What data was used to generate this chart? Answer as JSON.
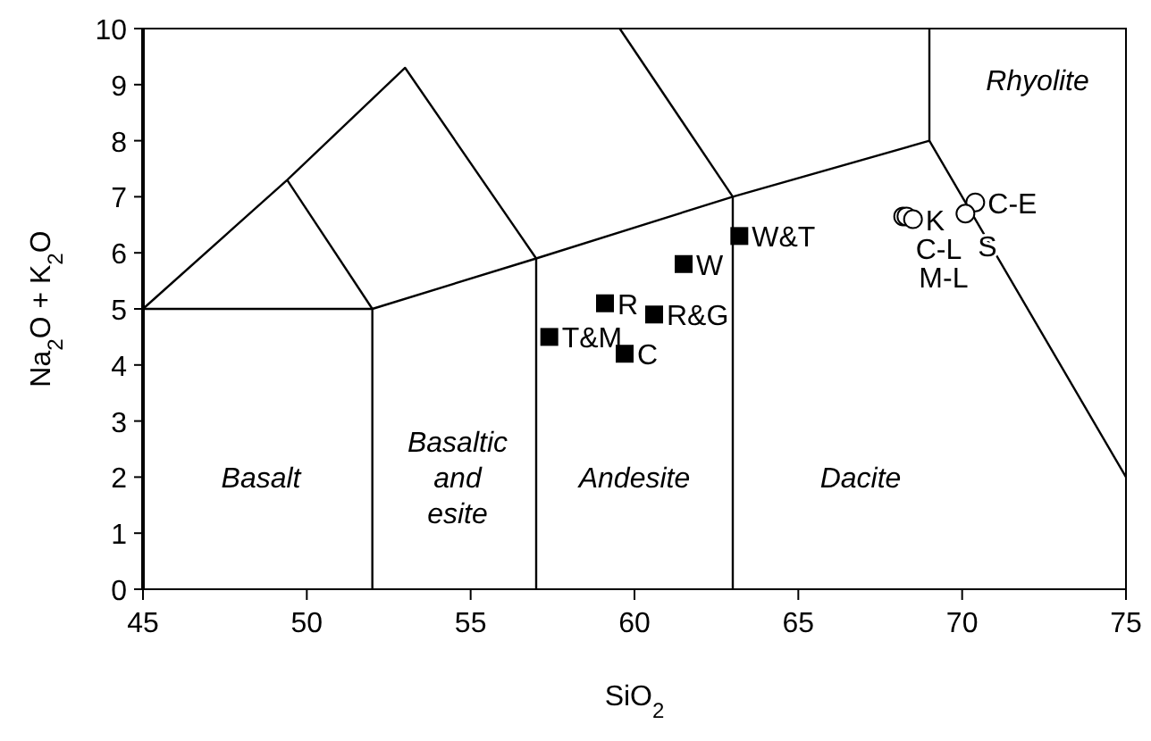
{
  "chart_data": {
    "type": "scatter",
    "xlabel": "SiO$_{2}$",
    "ylabel": "Na$_{2}$O + K$_{2}$O",
    "xlim": [
      45,
      75
    ],
    "ylim": [
      0,
      10
    ],
    "xticks": [
      45,
      50,
      55,
      60,
      65,
      70,
      75
    ],
    "yticks": [
      0,
      1,
      2,
      3,
      4,
      5,
      6,
      7,
      8,
      9,
      10
    ],
    "grid": false,
    "series": [
      {
        "type": "line",
        "color": "#000000",
        "x": [
          45,
          52,
          57,
          63,
          69,
          75
        ],
        "values": [
          5,
          5,
          5.9,
          7,
          8,
          2
        ]
      },
      {
        "type": "line",
        "color": "#000000",
        "x": [
          52,
          52
        ],
        "values": [
          0,
          5
        ]
      },
      {
        "type": "line",
        "color": "#000000",
        "x": [
          57,
          57
        ],
        "values": [
          0,
          5.9
        ]
      },
      {
        "type": "line",
        "color": "#000000",
        "x": [
          63,
          63
        ],
        "values": [
          0,
          7
        ]
      },
      {
        "type": "line",
        "color": "#000000",
        "x": [
          69,
          69
        ],
        "values": [
          8,
          10
        ]
      },
      {
        "type": "line",
        "color": "#000000",
        "x": [
          45,
          49.4,
          53,
          57
        ],
        "values": [
          5,
          7.3,
          9.3,
          5.9
        ]
      },
      {
        "type": "line",
        "color": "#000000",
        "x": [
          49.4,
          52
        ],
        "values": [
          7.3,
          5
        ]
      },
      {
        "type": "line",
        "color": "#000000",
        "x": [
          59.55,
          63
        ],
        "values": [
          10,
          7
        ]
      },
      {
        "name": "T&M",
        "marker": "square",
        "color": "#000000",
        "x": [
          57.4
        ],
        "values": [
          4.5
        ]
      },
      {
        "name": "R",
        "marker": "square",
        "color": "#000000",
        "x": [
          59.1
        ],
        "values": [
          5.1
        ]
      },
      {
        "name": "C",
        "marker": "square",
        "color": "#000000",
        "x": [
          59.7
        ],
        "values": [
          4.2
        ]
      },
      {
        "name": "R&G",
        "marker": "square",
        "color": "#000000",
        "x": [
          60.6
        ],
        "values": [
          4.9
        ]
      },
      {
        "name": "W",
        "marker": "square",
        "color": "#000000",
        "x": [
          61.5
        ],
        "values": [
          5.8
        ]
      },
      {
        "name": "W&T",
        "marker": "square",
        "color": "#000000",
        "x": [
          63.2
        ],
        "values": [
          6.3
        ]
      },
      {
        "name": "C-L",
        "marker": "circle",
        "color": "#000000",
        "x": [
          68.2
        ],
        "values": [
          6.65
        ]
      },
      {
        "name": "M-L",
        "marker": "circle",
        "color": "#000000",
        "x": [
          68.3
        ],
        "values": [
          6.65
        ]
      },
      {
        "name": "K",
        "marker": "circle",
        "color": "#000000",
        "x": [
          68.5
        ],
        "values": [
          6.6
        ]
      },
      {
        "name": "C-E",
        "marker": "circle",
        "color": "#000000",
        "x": [
          70.4
        ],
        "values": [
          6.9
        ]
      },
      {
        "name": "S",
        "marker": "circle",
        "color": "#000000",
        "x": [
          70.1
        ],
        "values": [
          6.7
        ]
      }
    ],
    "annotations": [
      "Basalt",
      "Basaltic\nand\nesite",
      "Andesite",
      "Dacite",
      "Rhyolite"
    ]
  }
}
